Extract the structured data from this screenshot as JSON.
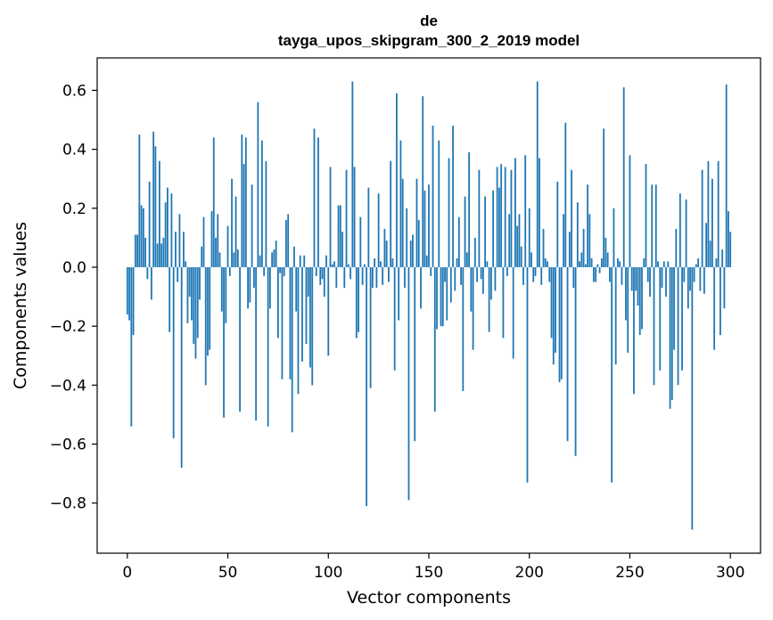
{
  "chart_data": {
    "type": "bar",
    "title": "de",
    "subtitle": "tayga_upos_skipgram_300_2_2019 model",
    "xlabel": "Vector components",
    "ylabel": "Components values",
    "xlim": [
      -15,
      315
    ],
    "ylim": [
      -0.97,
      0.71
    ],
    "xticks": [
      0,
      50,
      100,
      150,
      200,
      250,
      300
    ],
    "yticks": [
      -0.8,
      -0.6,
      -0.4,
      -0.2,
      0.0,
      0.2,
      0.4,
      0.6
    ],
    "xtick_labels": [
      "0",
      "50",
      "100",
      "150",
      "200",
      "250",
      "300"
    ],
    "ytick_labels": [
      "−0.8",
      "−0.6",
      "−0.4",
      "−0.2",
      "0.0",
      "0.2",
      "0.4",
      "0.6"
    ],
    "bar_color": "#1f77b4",
    "grid": false,
    "values": [
      -0.16,
      -0.18,
      -0.54,
      -0.23,
      0.11,
      0.11,
      0.45,
      0.21,
      0.2,
      0.1,
      -0.04,
      0.29,
      -0.11,
      0.46,
      0.41,
      0.08,
      0.36,
      0.08,
      0.1,
      0.22,
      0.27,
      -0.22,
      0.25,
      -0.58,
      0.12,
      -0.05,
      0.18,
      -0.68,
      0.12,
      0.02,
      -0.19,
      -0.1,
      -0.18,
      -0.26,
      -0.31,
      -0.24,
      -0.11,
      0.07,
      0.17,
      -0.4,
      -0.3,
      -0.28,
      0.19,
      0.44,
      0.1,
      0.18,
      0.05,
      -0.15,
      -0.51,
      -0.19,
      0.14,
      -0.03,
      0.3,
      0.05,
      0.24,
      0.06,
      -0.49,
      0.45,
      0.35,
      0.44,
      -0.14,
      -0.12,
      0.28,
      -0.07,
      -0.52,
      0.56,
      0.04,
      0.43,
      -0.03,
      0.36,
      -0.54,
      -0.14,
      0.05,
      0.06,
      0.09,
      -0.24,
      -0.02,
      -0.38,
      -0.03,
      0.16,
      0.18,
      -0.38,
      -0.56,
      0.07,
      -0.15,
      -0.43,
      0.04,
      -0.32,
      0.04,
      -0.26,
      -0.1,
      -0.34,
      -0.4,
      0.47,
      -0.03,
      0.44,
      -0.06,
      -0.04,
      -0.1,
      0.04,
      -0.3,
      0.34,
      0.01,
      0.02,
      -0.07,
      0.21,
      0.21,
      0.12,
      -0.07,
      0.33,
      0.01,
      -0.04,
      0.63,
      0.34,
      -0.24,
      -0.22,
      0.17,
      -0.06,
      0.01,
      -0.81,
      0.27,
      -0.41,
      -0.07,
      0.03,
      -0.07,
      0.25,
      0.02,
      -0.06,
      0.13,
      0.09,
      -0.05,
      0.36,
      0.03,
      -0.35,
      0.59,
      -0.18,
      0.43,
      0.3,
      -0.07,
      0.2,
      -0.79,
      0.09,
      0.11,
      -0.59,
      0.3,
      0.16,
      -0.14,
      0.58,
      0.26,
      0.04,
      0.28,
      -0.03,
      0.48,
      -0.49,
      -0.21,
      0.43,
      -0.2,
      -0.2,
      -0.05,
      -0.18,
      0.37,
      -0.12,
      0.48,
      -0.08,
      0.03,
      0.17,
      -0.06,
      -0.42,
      0.24,
      0.05,
      0.39,
      -0.15,
      -0.28,
      0.1,
      -0.05,
      0.33,
      -0.04,
      -0.09,
      0.24,
      0.02,
      -0.22,
      -0.11,
      0.26,
      -0.08,
      0.34,
      0.27,
      0.35,
      -0.24,
      0.34,
      -0.03,
      0.18,
      0.33,
      -0.31,
      0.37,
      0.14,
      0.18,
      0.07,
      -0.06,
      0.38,
      -0.73,
      0.2,
      0.05,
      -0.05,
      -0.03,
      0.63,
      0.37,
      -0.06,
      0.13,
      0.03,
      0.02,
      -0.05,
      -0.24,
      -0.33,
      -0.29,
      0.29,
      -0.39,
      -0.38,
      0.18,
      0.49,
      -0.59,
      0.12,
      0.33,
      -0.07,
      -0.64,
      0.22,
      0.02,
      0.05,
      0.13,
      0.01,
      0.28,
      0.18,
      0.03,
      -0.05,
      -0.05,
      0.01,
      -0.02,
      0.03,
      0.47,
      0.1,
      0.05,
      -0.05,
      -0.73,
      0.2,
      -0.33,
      0.03,
      0.02,
      -0.06,
      0.61,
      -0.18,
      -0.29,
      0.38,
      -0.08,
      -0.43,
      -0.08,
      -0.13,
      -0.23,
      -0.21,
      0.03,
      0.35,
      -0.05,
      -0.1,
      0.28,
      -0.4,
      0.28,
      0.02,
      -0.35,
      -0.07,
      0.02,
      -0.1,
      0.02,
      -0.48,
      -0.45,
      -0.28,
      0.13,
      -0.4,
      0.25,
      -0.35,
      -0.05,
      0.23,
      -0.14,
      -0.08,
      -0.89,
      -0.05,
      0.01,
      0.03,
      -0.08,
      0.33,
      -0.09,
      0.15,
      0.36,
      0.09,
      0.3,
      -0.28,
      0.03,
      0.36,
      -0.23,
      0.06,
      -0.14,
      0.62,
      0.19,
      0.12
    ]
  }
}
